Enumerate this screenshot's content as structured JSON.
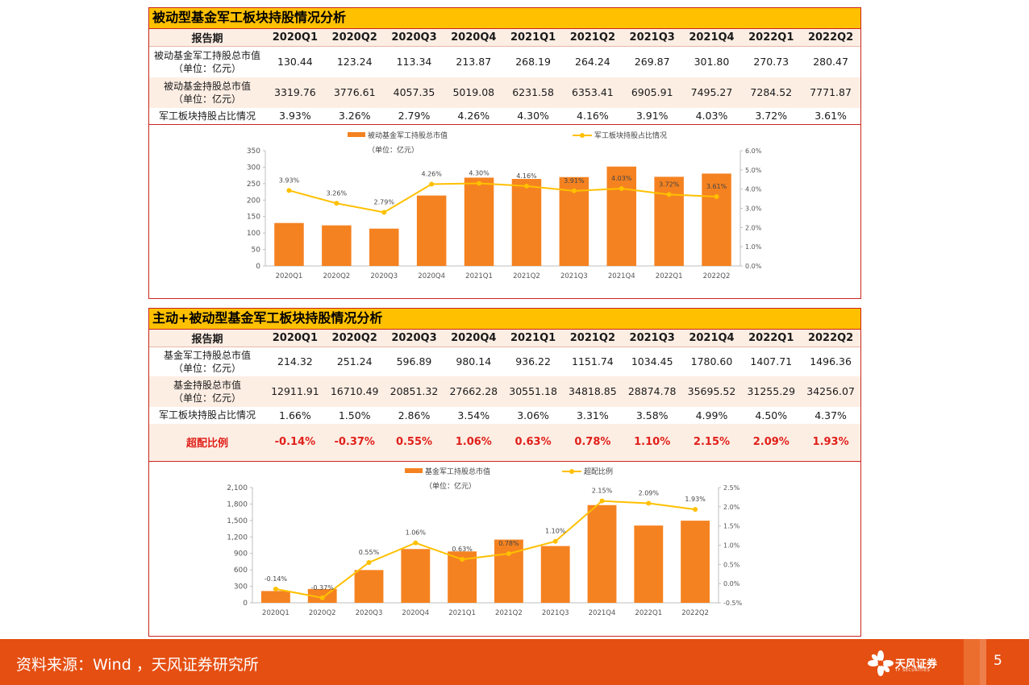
{
  "section1": {
    "title": "被动型基金军工板块持股情况分析",
    "header": "报告期",
    "periods": [
      "2020Q1",
      "2020Q2",
      "2020Q3",
      "2020Q4",
      "2021Q1",
      "2021Q2",
      "2021Q3",
      "2021Q4",
      "2022Q1",
      "2022Q2"
    ],
    "rows": [
      {
        "label": "被动基金军工持股总市值",
        "label2": "（单位：亿元）",
        "values": [
          "130.44",
          "123.24",
          "113.34",
          "213.87",
          "268.19",
          "264.24",
          "269.87",
          "301.80",
          "270.73",
          "280.47"
        ]
      },
      {
        "label": "被动基金持股总市值",
        "label2": "（单位：亿元）",
        "values": [
          "3319.76",
          "3776.61",
          "4057.35",
          "5019.08",
          "6231.58",
          "6353.41",
          "6905.91",
          "7495.27",
          "7284.52",
          "7771.87"
        ]
      },
      {
        "label": "军工板块持股占比情况",
        "label2": "",
        "values": [
          "3.93%",
          "3.26%",
          "2.79%",
          "4.26%",
          "4.30%",
          "4.16%",
          "3.91%",
          "4.03%",
          "3.72%",
          "3.61%"
        ]
      }
    ]
  },
  "section2": {
    "title": "主动+被动型基金军工板块持股情况分析",
    "header": "报告期",
    "periods": [
      "2020Q1",
      "2020Q2",
      "2020Q3",
      "2020Q4",
      "2021Q1",
      "2021Q2",
      "2021Q3",
      "2021Q4",
      "2022Q1",
      "2022Q2"
    ],
    "rows": [
      {
        "label": "基金军工持股总市值",
        "label2": "（单位：亿元）",
        "values": [
          "214.32",
          "251.24",
          "596.89",
          "980.14",
          "936.22",
          "1151.74",
          "1034.45",
          "1780.60",
          "1407.71",
          "1496.36"
        ]
      },
      {
        "label": "基金持股总市值",
        "label2": "（单位：亿元）",
        "values": [
          "12911.91",
          "16710.49",
          "20851.32",
          "27662.28",
          "30551.18",
          "34818.85",
          "28874.78",
          "35695.52",
          "31255.29",
          "34256.07"
        ]
      },
      {
        "label": "军工板块持股占比情况",
        "label2": "",
        "values": [
          "1.66%",
          "1.50%",
          "2.86%",
          "3.54%",
          "3.06%",
          "3.31%",
          "3.58%",
          "4.99%",
          "4.50%",
          "4.37%"
        ]
      }
    ],
    "over_row": {
      "label": "超配比例",
      "values": [
        "-0.14%",
        "-0.37%",
        "0.55%",
        "1.06%",
        "0.63%",
        "0.78%",
        "1.10%",
        "2.15%",
        "2.09%",
        "1.93%"
      ]
    }
  },
  "chart_data": [
    {
      "type": "bar",
      "categories": [
        "2020Q1",
        "2020Q2",
        "2020Q3",
        "2020Q4",
        "2021Q1",
        "2021Q2",
        "2021Q3",
        "2021Q4",
        "2022Q1",
        "2022Q2"
      ],
      "series": [
        {
          "name": "被动基金军工持股总市值",
          "name2": "（单位：亿元）",
          "axis": "left",
          "kind": "bar",
          "color": "#f58220",
          "values": [
            130.44,
            123.24,
            113.34,
            213.87,
            268.19,
            264.24,
            269.87,
            301.8,
            270.73,
            280.47
          ]
        },
        {
          "name": "军工板块持股占比情况",
          "axis": "right",
          "kind": "line",
          "color": "#ffc000",
          "values": [
            3.93,
            3.26,
            2.79,
            4.26,
            4.3,
            4.16,
            3.91,
            4.03,
            3.72,
            3.61
          ],
          "labels": [
            "3.93%",
            "3.26%",
            "2.79%",
            "4.26%",
            "4.30%",
            "4.16%",
            "3.91%",
            "4.03%",
            "3.72%",
            "3.61%"
          ]
        }
      ],
      "ylim": [
        0,
        350
      ],
      "yticks": [
        0,
        50,
        100,
        150,
        200,
        250,
        300,
        350
      ],
      "ytick_labels": [
        "0",
        "50",
        "100",
        "150",
        "200",
        "250",
        "300",
        "350"
      ],
      "y2lim": [
        0,
        6
      ],
      "y2ticks": [
        0,
        1,
        2,
        3,
        4,
        5,
        6
      ],
      "y2tick_labels": [
        "0.0%",
        "1.0%",
        "2.0%",
        "3.0%",
        "4.0%",
        "5.0%",
        "6.0%"
      ],
      "legend": "top"
    },
    {
      "type": "bar",
      "categories": [
        "2020Q1",
        "2020Q2",
        "2020Q3",
        "2020Q4",
        "2021Q1",
        "2021Q2",
        "2021Q3",
        "2021Q4",
        "2022Q1",
        "2022Q2"
      ],
      "series": [
        {
          "name": "基金军工持股总市值",
          "name2": "（单位：亿元）",
          "axis": "left",
          "kind": "bar",
          "color": "#f58220",
          "values": [
            214.32,
            251.24,
            596.89,
            980.14,
            936.22,
            1151.74,
            1034.45,
            1780.6,
            1407.71,
            1496.36
          ]
        },
        {
          "name": "超配比例",
          "axis": "right",
          "kind": "line",
          "color": "#ffc000",
          "values": [
            -0.14,
            -0.37,
            0.55,
            1.06,
            0.63,
            0.78,
            1.1,
            2.15,
            2.09,
            1.93
          ],
          "labels": [
            "-0.14%",
            "-0.37%",
            "0.55%",
            "1.06%",
            "0.63%",
            "0.78%",
            "1.10%",
            "2.15%",
            "2.09%",
            "1.93%"
          ]
        }
      ],
      "ylim": [
        0,
        2100
      ],
      "yticks": [
        0,
        300,
        600,
        900,
        1200,
        1500,
        1800,
        2100
      ],
      "ytick_labels": [
        "0",
        "300",
        "600",
        "900",
        "1,200",
        "1,500",
        "1,800",
        "2,100"
      ],
      "y2lim": [
        -0.5,
        2.5
      ],
      "y2ticks": [
        -0.5,
        0,
        0.5,
        1,
        1.5,
        2,
        2.5
      ],
      "y2tick_labels": [
        "-0.5%",
        "0.0%",
        "0.5%",
        "1.0%",
        "1.5%",
        "2.0%",
        "2.5%"
      ],
      "legend": "top"
    }
  ],
  "footer": {
    "source": "资料来源：Wind ，天风证券研究所",
    "logo_cn": "天风证券",
    "logo_en": "TF SECURITIES",
    "page": "5"
  },
  "colors": {
    "accent": "#c8261e",
    "title_bg": "#ffc000",
    "bar": "#f58220",
    "line": "#ffc000",
    "footer": "#e54f12"
  }
}
